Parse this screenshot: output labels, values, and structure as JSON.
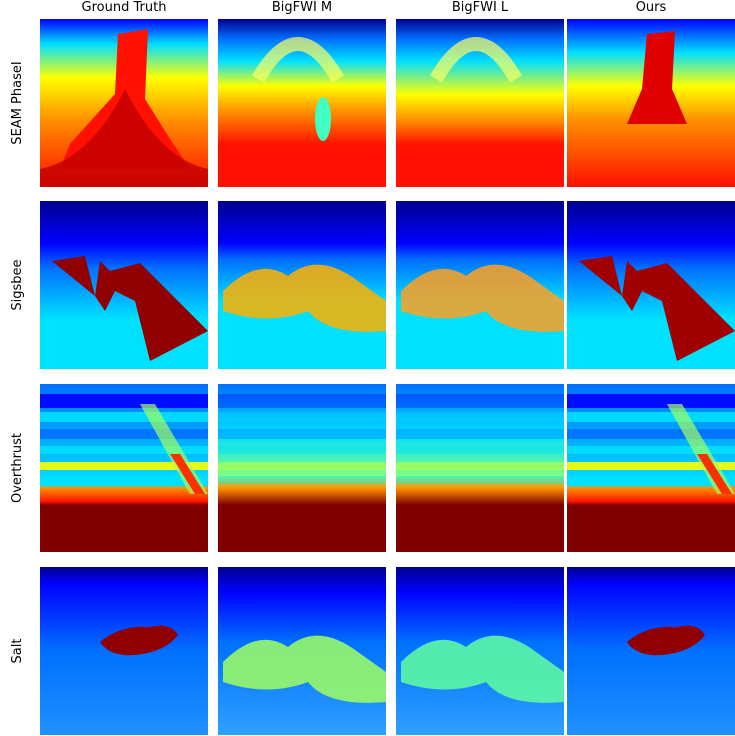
{
  "columns": [
    "Ground Truth",
    "BigFWI M",
    "BigFWI L",
    "Ours"
  ],
  "rows": [
    "SEAM PhaseI",
    "Sigsbee",
    "Overthrust",
    "Salt"
  ]
}
